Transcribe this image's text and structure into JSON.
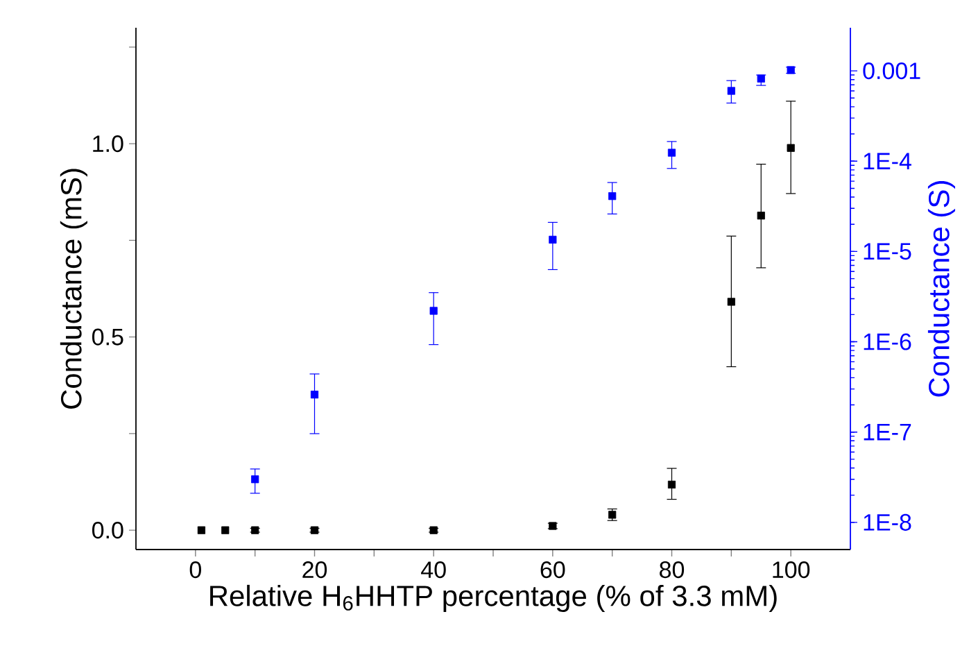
{
  "chart_data": {
    "type": "scatter",
    "xlabel": "Relative H$_{6}$HHTP percentage (% of 3.3 mM)",
    "ylabel": "Conductance (mS)",
    "y2label": "Conductance (S)",
    "marker": "square",
    "grid": false,
    "log": "y2",
    "xlim": [
      -10,
      110
    ],
    "xticks": [
      0,
      {
        "value": 10,
        "label": null
      },
      20,
      {
        "value": 30,
        "label": null
      },
      40,
      {
        "value": 50,
        "label": null
      },
      60,
      {
        "value": 70,
        "label": null
      },
      80,
      {
        "value": 90,
        "label": null
      },
      100
    ],
    "ylim": [
      -0.05,
      1.3
    ],
    "yticks": [
      {
        "value": 0,
        "label": "0.0"
      },
      {
        "value": 0.25,
        "label": null
      },
      {
        "value": 0.5,
        "label": "0.5"
      },
      {
        "value": 0.75,
        "label": null
      },
      {
        "value": 1,
        "label": "1.0"
      },
      {
        "value": 1.25,
        "label": null
      }
    ],
    "y2lim": [
      5e-09,
      0.003
    ],
    "y2ticks": [
      {
        "value": 1e-08,
        "label": "1E-8"
      },
      {
        "value": 1e-07,
        "label": "1E-7"
      },
      {
        "value": 1e-06,
        "label": "1E-6"
      },
      {
        "value": 1e-05,
        "label": "1E-5"
      },
      {
        "value": 0.0001,
        "label": "1E-4"
      },
      0.001
    ],
    "series": [
      {
        "color": "#000000",
        "x": [
          1,
          5,
          10,
          20,
          40,
          60,
          70,
          80,
          90,
          95,
          100
        ],
        "values": [
          0,
          0,
          0,
          0,
          0,
          0.011,
          0.04,
          0.118,
          0.591,
          0.814,
          0.989
        ],
        "errors": [
          null,
          null,
          0.005,
          0.005,
          0.005,
          0.007,
          [
            0.025,
            0.055
          ],
          [
            0.08,
            0.16
          ],
          [
            0.423,
            0.761
          ],
          [
            0.679,
            0.947
          ],
          [
            0.871,
            1.11
          ]
        ]
      },
      {
        "color": "#0000ff",
        "axis": "y2",
        "x": [
          10,
          20,
          40,
          60,
          70,
          80,
          90,
          95,
          100
        ],
        "values": [
          3e-08,
          2.6e-07,
          2.2e-06,
          1.35e-05,
          4.1e-05,
          0.000124,
          0.0006,
          0.00082,
          0.00102
        ],
        "errors": [
          [
            2.1e-08,
            3.9e-08
          ],
          [
            9.6e-08,
            4.4e-07
          ],
          [
            9.3e-07,
            3.5e-06
          ],
          [
            6.3e-06,
            2.1e-05
          ],
          [
            2.6e-05,
            5.8e-05
          ],
          [
            8.3e-05,
            0.000165
          ],
          [
            0.00044,
            0.00078
          ],
          [
            0.00069,
            0.0009
          ],
          [
            0.00094,
            0.0011
          ]
        ]
      }
    ]
  }
}
